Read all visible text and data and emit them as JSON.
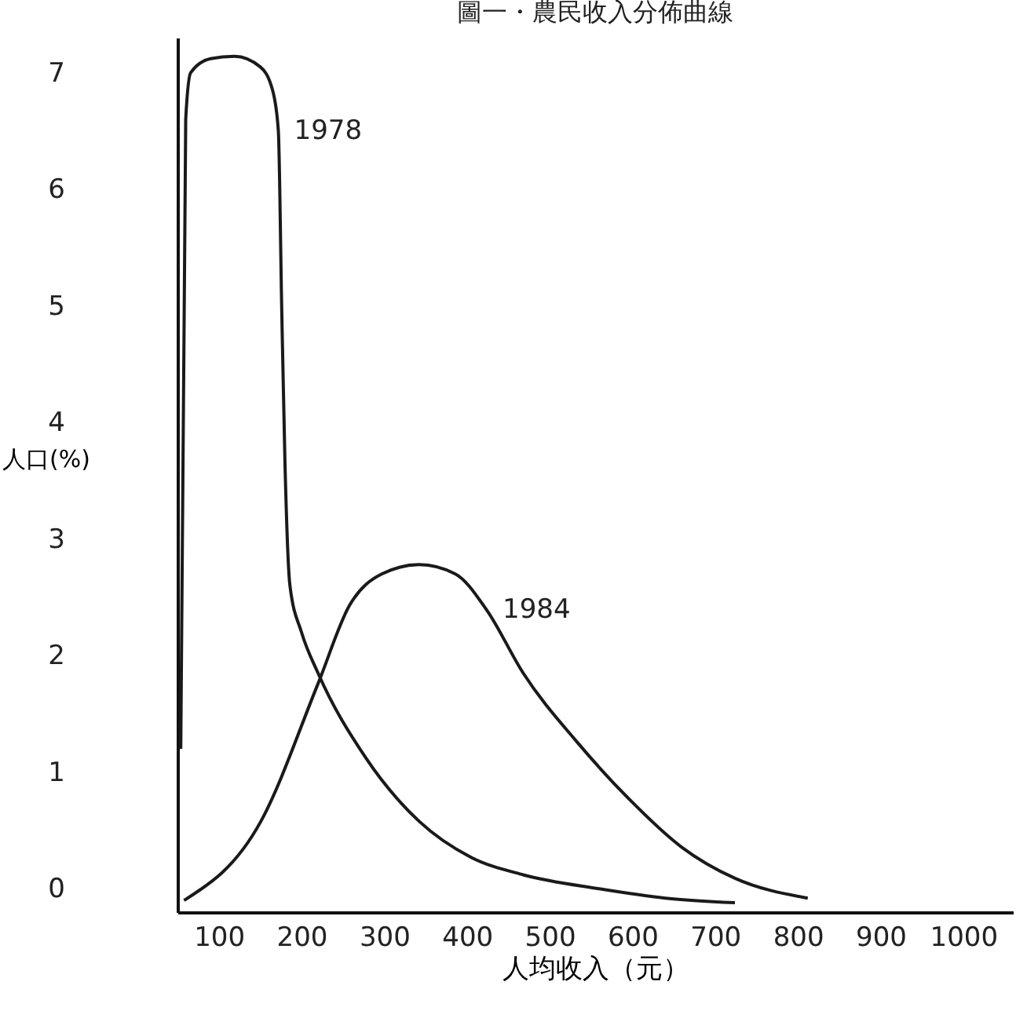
{
  "chart_data": {
    "type": "line",
    "title": "圖一・農民收入分佈曲線",
    "xlabel": "人均收入（元）",
    "ylabel": "人口(%)",
    "xlim": [
      50,
      1060
    ],
    "xticks": [
      100,
      200,
      300,
      400,
      500,
      600,
      700,
      800,
      900,
      1000
    ],
    "ylim": [
      -0.2,
      7.3
    ],
    "yticks": [
      0,
      1,
      2,
      3,
      4,
      5,
      6,
      7
    ],
    "grid": false,
    "legend": false,
    "series": [
      {
        "name": "1978",
        "color": "#1a1a1a",
        "x": [
          54,
          60,
          66,
          90,
          119,
          150,
          165,
          172,
          176,
          180,
          186,
          200,
          220,
          278,
          342,
          405,
          468,
          560,
          640,
          724
        ],
        "values": [
          1.2,
          6.6,
          7.0,
          7.12,
          7.14,
          7.05,
          6.85,
          6.5,
          5.0,
          3.65,
          2.6,
          2.2,
          1.85,
          1.12,
          0.58,
          0.27,
          0.12,
          0.0,
          -0.08,
          -0.12
        ]
      },
      {
        "name": "1984",
        "color": "#1a1a1a",
        "x": [
          58,
          151,
          220,
          258,
          297,
          342,
          386,
          424,
          468,
          533,
          596,
          659,
          724,
          812
        ],
        "values": [
          -0.1,
          0.58,
          1.76,
          2.43,
          2.7,
          2.78,
          2.7,
          2.39,
          1.85,
          1.26,
          0.77,
          0.36,
          0.09,
          -0.08
        ]
      }
    ]
  }
}
